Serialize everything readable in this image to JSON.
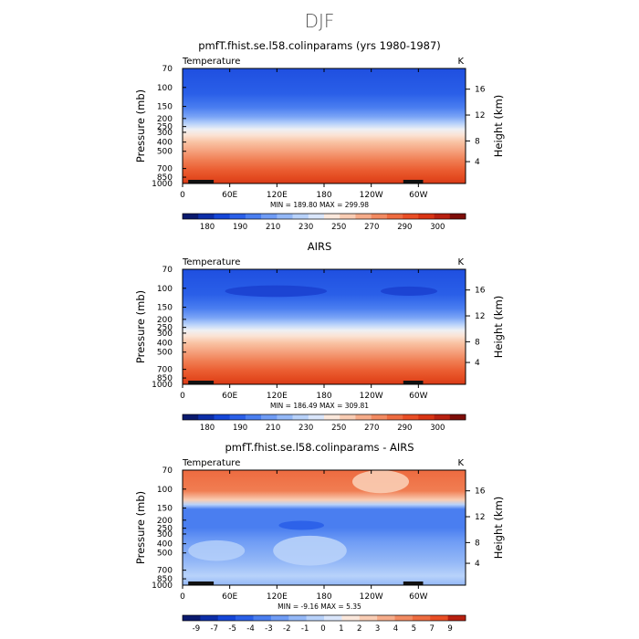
{
  "figure": {
    "title": "DJF"
  },
  "chart_data": [
    {
      "type": "heatmap",
      "title": "pmfT.fhist.se.l58.colinparams (yrs 1980-1987)",
      "left_label": "Temperature",
      "right_unit": "K",
      "ylabel": "Pressure (mb)",
      "y2label": "Height (km)",
      "x_ticks": [
        "0",
        "60E",
        "120E",
        "180",
        "120W",
        "60W"
      ],
      "y_ticks": [
        "70",
        "100",
        "150",
        "200",
        "250",
        "300",
        "400",
        "500",
        "700",
        "850",
        "1000"
      ],
      "y2_ticks": [
        "16",
        "12",
        "8",
        "4"
      ],
      "min_max_text": "MIN = 189.80   MAX = 299.98",
      "min": 189.8,
      "max": 299.98,
      "colorbar_labels": [
        "180",
        "190",
        "210",
        "230",
        "250",
        "270",
        "290",
        "300"
      ]
    },
    {
      "type": "heatmap",
      "title": "AIRS",
      "left_label": "Temperature",
      "right_unit": "K",
      "ylabel": "Pressure (mb)",
      "y2label": "Height (km)",
      "x_ticks": [
        "0",
        "60E",
        "120E",
        "180",
        "120W",
        "60W"
      ],
      "y_ticks": [
        "70",
        "100",
        "150",
        "200",
        "250",
        "300",
        "400",
        "500",
        "700",
        "850",
        "1000"
      ],
      "y2_ticks": [
        "16",
        "12",
        "8",
        "4"
      ],
      "min_max_text": "MIN = 186.49   MAX = 309.81",
      "min": 186.49,
      "max": 309.81,
      "colorbar_labels": [
        "180",
        "190",
        "210",
        "230",
        "250",
        "270",
        "290",
        "300"
      ]
    },
    {
      "type": "heatmap",
      "title": "pmfT.fhist.se.l58.colinparams - AIRS",
      "left_label": "Temperature",
      "right_unit": "K",
      "ylabel": "Pressure (mb)",
      "y2label": "Height (km)",
      "x_ticks": [
        "0",
        "60E",
        "120E",
        "180",
        "120W",
        "60W"
      ],
      "y_ticks": [
        "70",
        "100",
        "150",
        "200",
        "250",
        "300",
        "400",
        "500",
        "700",
        "850",
        "1000"
      ],
      "y2_ticks": [
        "16",
        "12",
        "8",
        "4"
      ],
      "min_max_text": "MIN =  -9.16   MAX =    5.35",
      "min": -9.16,
      "max": 5.35,
      "colorbar_labels": [
        "-9",
        "-7",
        "-5",
        "-4",
        "-3",
        "-2",
        "-1",
        "0",
        "1",
        "2",
        "3",
        "4",
        "5",
        "7",
        "9"
      ]
    }
  ],
  "colors": {
    "temperature_scale": [
      "#0a1a6e",
      "#0c2ea8",
      "#1546d8",
      "#2a5fe8",
      "#4a7ef0",
      "#6f9cf5",
      "#94b8f7",
      "#b8d2fa",
      "#dae6fb",
      "#fbe8dc",
      "#f9cdb4",
      "#f6ac8a",
      "#f28a61",
      "#ee6b40",
      "#e94e25",
      "#d93414",
      "#b82010",
      "#7e0d08"
    ],
    "difference_scale": [
      "#0a1a6e",
      "#0c2ea8",
      "#1546d8",
      "#2a5fe8",
      "#4a7ef0",
      "#6f9cf5",
      "#94b8f7",
      "#b8d2fa",
      "#dae6fb",
      "#fbe8dc",
      "#f9cdb4",
      "#f6ac8a",
      "#f28a61",
      "#ee6b40",
      "#e94e25",
      "#b82010"
    ]
  }
}
